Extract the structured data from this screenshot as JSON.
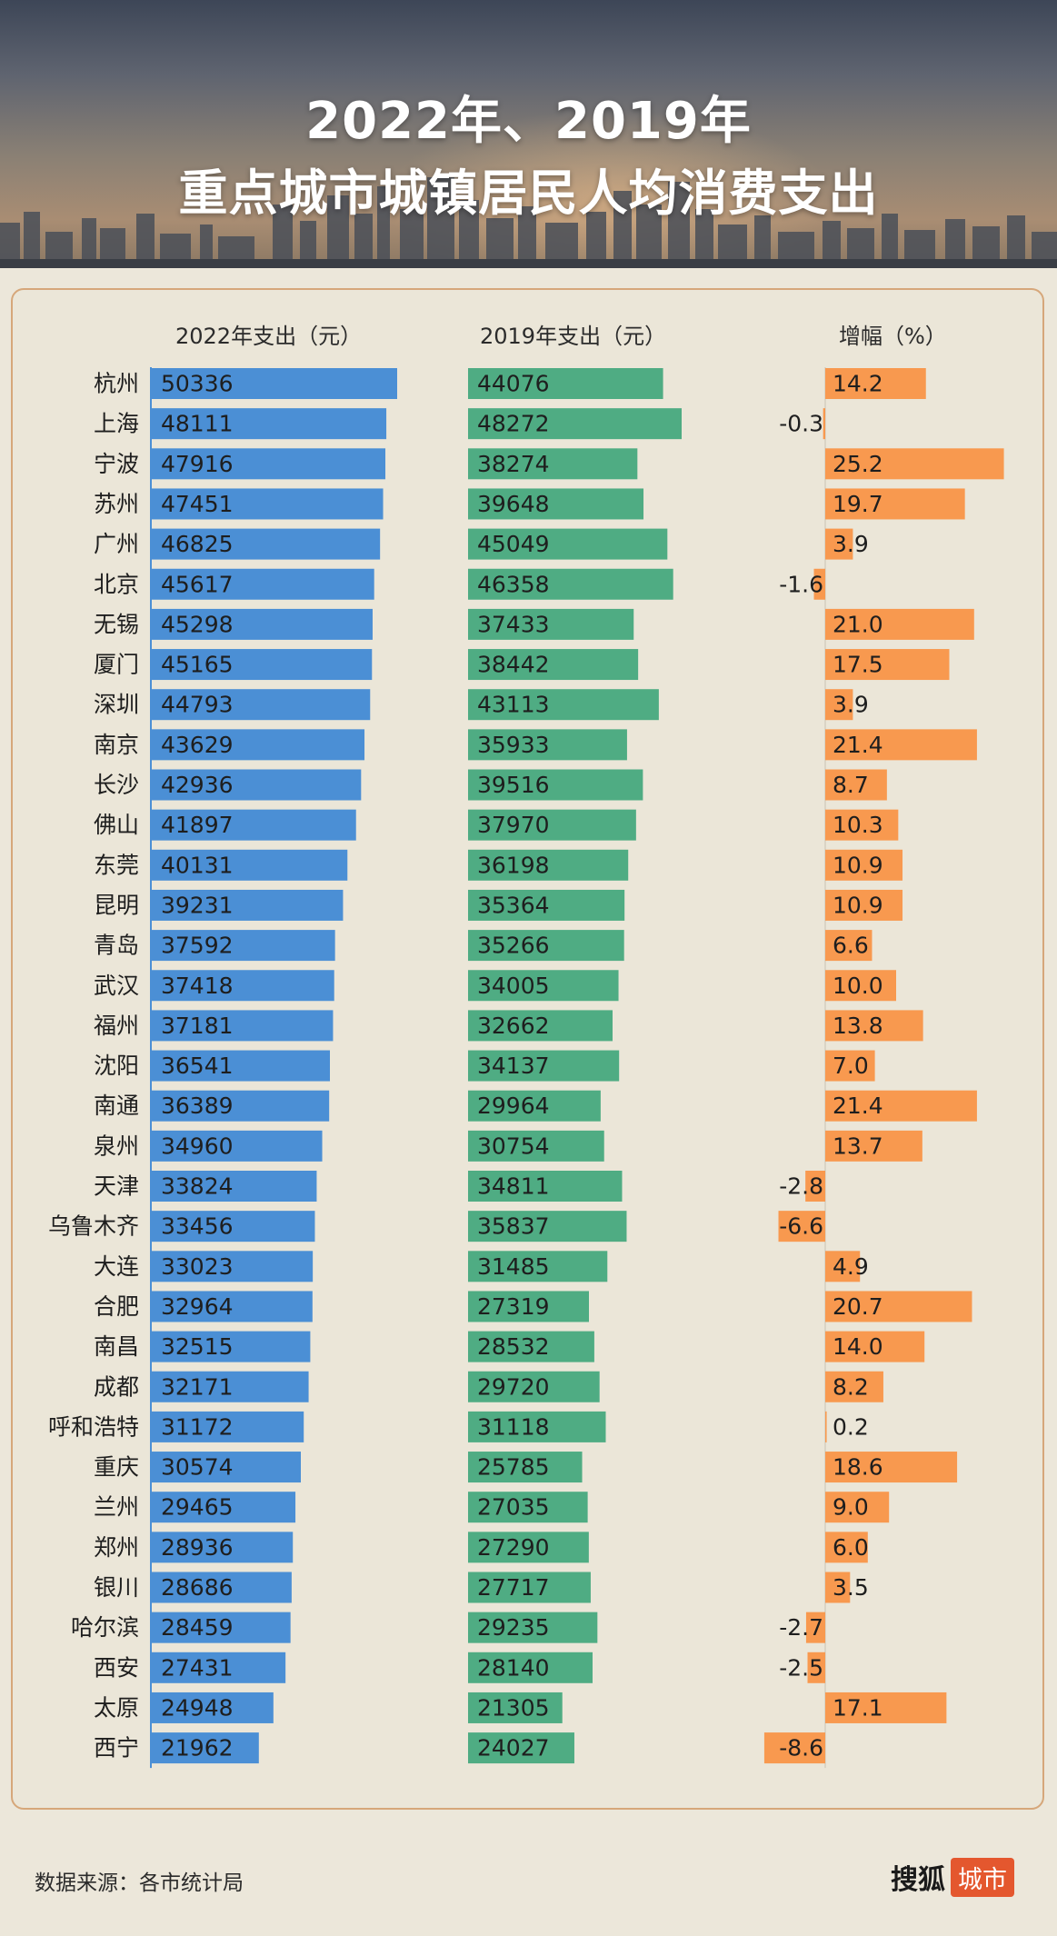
{
  "title": {
    "line1": "2022年、2019年",
    "line2": "重点城市城镇居民人均消费支出"
  },
  "headers": {
    "col2022": "2022年支出（元）",
    "col2019": "2019年支出（元）",
    "colGrowth": "增幅（%）"
  },
  "footer": {
    "source": "数据来源：各市统计局",
    "logo_text": "搜狐",
    "logo_badge": "城市"
  },
  "colors": {
    "bar2022": "#4b8fd5",
    "bar2019": "#4fac83",
    "barGrowth": "#f8994f",
    "panelBorder": "#d6a77a"
  },
  "chart_data": {
    "type": "bar",
    "orientation": "horizontal",
    "categories": [
      "杭州",
      "上海",
      "宁波",
      "苏州",
      "广州",
      "北京",
      "无锡",
      "厦门",
      "深圳",
      "南京",
      "长沙",
      "佛山",
      "东莞",
      "昆明",
      "青岛",
      "武汉",
      "福州",
      "沈阳",
      "南通",
      "泉州",
      "天津",
      "乌鲁木齐",
      "大连",
      "合肥",
      "南昌",
      "成都",
      "呼和浩特",
      "重庆",
      "兰州",
      "郑州",
      "银川",
      "哈尔滨",
      "西安",
      "太原",
      "西宁"
    ],
    "series": [
      {
        "name": "2022年支出（元）",
        "values": [
          50336,
          48111,
          47916,
          47451,
          46825,
          45617,
          45298,
          45165,
          44793,
          43629,
          42936,
          41897,
          40131,
          39231,
          37592,
          37418,
          37181,
          36541,
          36389,
          34960,
          33824,
          33456,
          33023,
          32964,
          32515,
          32171,
          31172,
          30574,
          29465,
          28936,
          28686,
          28459,
          27431,
          24948,
          21962
        ]
      },
      {
        "name": "2019年支出（元）",
        "values": [
          44076,
          48272,
          38274,
          39648,
          45049,
          46358,
          37433,
          38442,
          43113,
          35933,
          39516,
          37970,
          36198,
          35364,
          35266,
          34005,
          32662,
          34137,
          29964,
          30754,
          34811,
          35837,
          31485,
          27319,
          28532,
          29720,
          31118,
          25785,
          27035,
          27290,
          27717,
          29235,
          28140,
          21305,
          24027
        ]
      },
      {
        "name": "增幅（%）",
        "values": [
          "14.2",
          "-0.3",
          "25.2",
          "19.7",
          "3.9",
          "-1.6",
          "21.0",
          "17.5",
          "3.9",
          "21.4",
          "8.7",
          "10.3",
          "10.9",
          "10.9",
          "6.6",
          "10.0",
          "13.8",
          "7.0",
          "21.4",
          "13.7",
          "-2.8",
          "-6.6",
          "4.9",
          "20.7",
          "14.0",
          "8.2",
          "0.2",
          "18.6",
          "9.0",
          "6.0",
          "3.5",
          "-2.7",
          "-2.5",
          "17.1",
          "-8.6"
        ]
      }
    ],
    "grid": false,
    "legend": "none"
  }
}
